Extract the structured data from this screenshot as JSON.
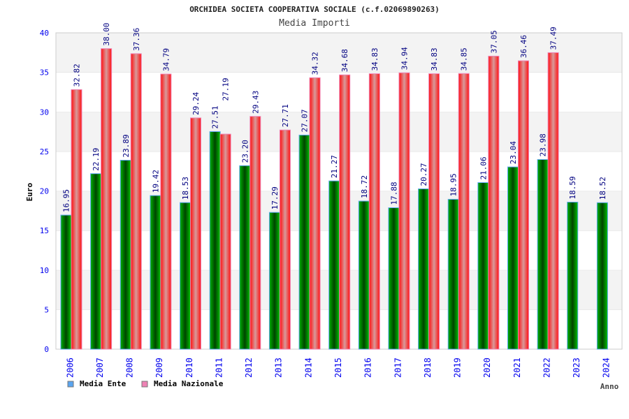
{
  "chart_data": {
    "type": "bar",
    "title": "ORCHIDEA SOCIETA COOPERATIVA SOCIALE (c.f.02069890263)",
    "subtitle": "Media Importi",
    "xlabel": "Anno",
    "ylabel": "Euro",
    "ylim": [
      0,
      40
    ],
    "yticks": [
      "0",
      "5",
      "10",
      "15",
      "20",
      "25",
      "30",
      "35",
      "40"
    ],
    "grid": true,
    "legend_position": "bottom-left",
    "categories": [
      "2006",
      "2007",
      "2008",
      "2009",
      "2010",
      "2011",
      "2012",
      "2013",
      "2014",
      "2015",
      "2016",
      "2017",
      "2018",
      "2019",
      "2020",
      "2021",
      "2022",
      "2023",
      "2024"
    ],
    "series": [
      {
        "name": "Media Ente",
        "color": "#00a000",
        "legend_color": "#5aa5f0",
        "values": [
          16.95,
          22.19,
          23.89,
          19.42,
          18.53,
          27.51,
          23.2,
          17.29,
          27.07,
          21.27,
          18.72,
          17.88,
          20.27,
          18.95,
          21.06,
          23.04,
          23.98,
          18.59,
          18.52
        ],
        "labels": [
          "16.95",
          "22.19",
          "23.89",
          "19.42",
          "18.53",
          "27.51",
          "23.20",
          "17.29",
          "27.07",
          "21.27",
          "18.72",
          "17.88",
          "20.27",
          "18.95",
          "21.06",
          "23.04",
          "23.98",
          "18.59",
          "18.52"
        ]
      },
      {
        "name": "Media Nazionale",
        "color": "#ee1111",
        "legend_color": "#ee82b4",
        "values": [
          32.82,
          38.0,
          37.36,
          34.79,
          29.24,
          27.19,
          29.43,
          27.71,
          34.32,
          34.68,
          34.83,
          34.94,
          34.83,
          34.85,
          37.05,
          36.46,
          37.49,
          null,
          null
        ],
        "labels": [
          "32.82",
          "38.00",
          "37.36",
          "34.79",
          "29.24",
          "27.19",
          "29.43",
          "27.71",
          "34.32",
          "34.68",
          "34.83",
          "34.94",
          "34.83",
          "34.85",
          "37.05",
          "36.46",
          "37.49",
          null,
          null
        ]
      }
    ]
  }
}
